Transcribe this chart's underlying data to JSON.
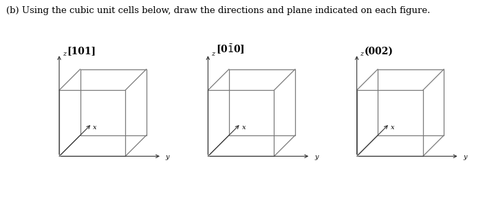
{
  "title_text": "(b) Using the cubic unit cells below, draw the directions and plane indicated on each figure.",
  "title_fontsize": 9.5,
  "labels": [
    "[101]",
    "[0$\\bar{1}$0]",
    "(002)"
  ],
  "label_fontsize": 10,
  "bg_color": "#ffffff",
  "cube_color": "#7a7a7a",
  "cube_lw": 0.9,
  "axis_color": "#333333",
  "axis_lw": 0.8,
  "label_bold": true
}
